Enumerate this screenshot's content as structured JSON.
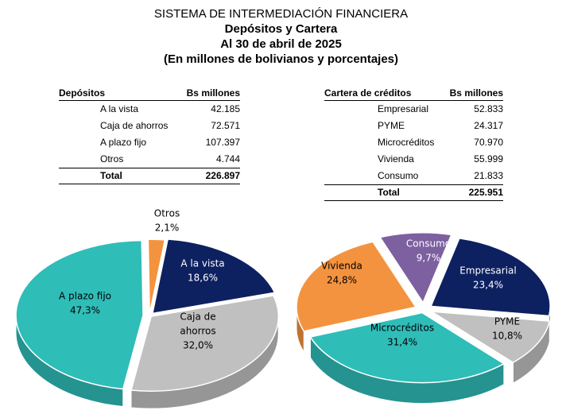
{
  "title": {
    "line1": "SISTEMA DE INTERMEDIACIÓN FINANCIERA",
    "line2": "Depósitos y Cartera",
    "line3": "Al 30 de abril de 2025",
    "line4": "(En millones de bolivianos y porcentajes)"
  },
  "depositos_table": {
    "header_label": "Depósitos",
    "header_value": "Bs millones",
    "rows": [
      {
        "label": "A la vista",
        "value": "42.185"
      },
      {
        "label": "Caja de ahorros",
        "value": "72.571"
      },
      {
        "label": "A plazo fijo",
        "value": "107.397"
      },
      {
        "label": "Otros",
        "value": "4.744"
      }
    ],
    "total_label": "Total",
    "total_value": "226.897"
  },
  "cartera_table": {
    "header_label": "Cartera de créditos",
    "header_value": "Bs millones",
    "rows": [
      {
        "label": "Empresarial",
        "value": "52.833"
      },
      {
        "label": "PYME",
        "value": "24.317"
      },
      {
        "label": "Microcréditos",
        "value": "70.970"
      },
      {
        "label": "Vivienda",
        "value": "55.999"
      },
      {
        "label": "Consumo",
        "value": "21.833"
      }
    ],
    "total_label": "Total",
    "total_value": "225.951"
  },
  "chart_data": [
    {
      "type": "pie",
      "title": "",
      "slices": [
        {
          "label": "Otros",
          "pct_label": "2,1%",
          "value": 2.1,
          "color": "#f4933f"
        },
        {
          "label": "A la vista",
          "pct_label": "18,6%",
          "value": 18.6,
          "color": "#0d2060"
        },
        {
          "label": "Caja de ahorros",
          "label_lines": [
            "Caja de",
            "ahorros"
          ],
          "pct_label": "32,0%",
          "value": 32.0,
          "color": "#c0c0c0"
        },
        {
          "label": "A plazo fijo",
          "pct_label": "47,3%",
          "value": 47.3,
          "color": "#2fbdb8"
        }
      ]
    },
    {
      "type": "pie",
      "title": "",
      "slices": [
        {
          "label": "Empresarial",
          "pct_label": "23,4%",
          "value": 23.4,
          "color": "#0d2060"
        },
        {
          "label": "PYME",
          "pct_label": "10,8%",
          "value": 10.8,
          "color": "#c0c0c0"
        },
        {
          "label": "Microcréditos",
          "pct_label": "31,4%",
          "value": 31.4,
          "color": "#2fbdb8"
        },
        {
          "label": "Vivienda",
          "pct_label": "24,8%",
          "value": 24.8,
          "color": "#f4933f"
        },
        {
          "label": "Consumo",
          "pct_label": "9,7%",
          "value": 9.7,
          "color": "#7d60a0"
        }
      ]
    }
  ]
}
